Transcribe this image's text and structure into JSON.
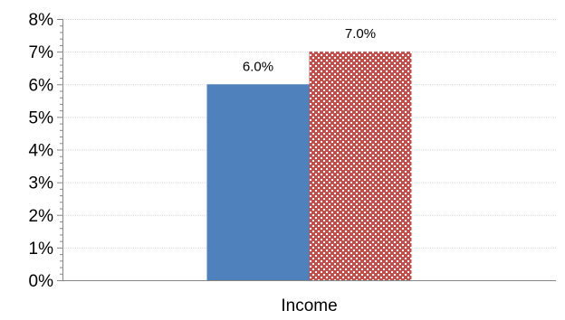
{
  "chart_data": {
    "type": "bar",
    "categories": [
      "Income"
    ],
    "series": [
      {
        "values": [
          6.0
        ],
        "color": "#4f81bd",
        "pattern": "solid"
      },
      {
        "values": [
          7.0
        ],
        "color": "#c0504d",
        "pattern": "checkered"
      }
    ],
    "data_labels": [
      "6.0%",
      "7.0%"
    ],
    "ylim": [
      0,
      8
    ],
    "yticks": [
      0,
      1,
      2,
      3,
      4,
      5,
      6,
      7,
      8
    ],
    "ytick_labels": [
      "0%",
      "1%",
      "2%",
      "3%",
      "4%",
      "5%",
      "6%",
      "7%",
      "8%"
    ],
    "grid": true,
    "legend": "none",
    "title": "",
    "xlabel": "",
    "ylabel": ""
  }
}
